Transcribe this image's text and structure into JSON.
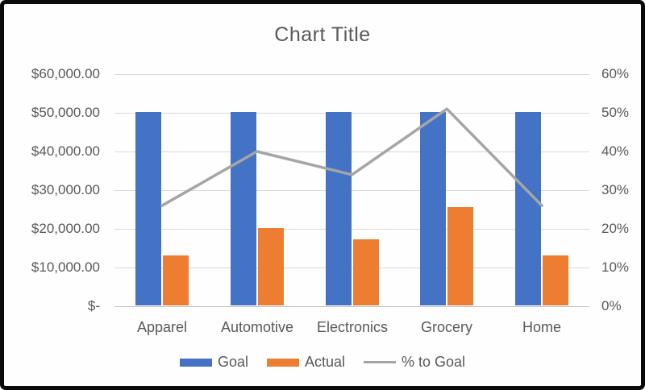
{
  "chart_data": {
    "type": "combo",
    "title": "Chart Title",
    "categories": [
      "Apparel",
      "Automotive",
      "Electronics",
      "Grocery",
      "Home"
    ],
    "series": [
      {
        "name": "Goal",
        "type": "bar",
        "axis": "left",
        "color": "#4472c4",
        "values": [
          50000,
          50000,
          50000,
          50000,
          50000
        ]
      },
      {
        "name": "Actual",
        "type": "bar",
        "axis": "left",
        "color": "#ed7d31",
        "values": [
          13000,
          20000,
          17000,
          25500,
          13000
        ]
      },
      {
        "name": "% to Goal",
        "type": "line",
        "axis": "right",
        "color": "#a5a5a5",
        "values": [
          26,
          40,
          34,
          51,
          26
        ]
      }
    ],
    "left_axis": {
      "min": 0,
      "max": 60000,
      "tick_labels": [
        "$60,000.00",
        "$50,000.00",
        "$40,000.00",
        "$30,000.00",
        "$20,000.00",
        "$10,000.00",
        "$-"
      ]
    },
    "right_axis": {
      "min": 0,
      "max": 60,
      "tick_labels": [
        "60%",
        "50%",
        "40%",
        "30%",
        "20%",
        "10%",
        "0%"
      ]
    },
    "legend": {
      "position": "bottom",
      "items": [
        {
          "label": "Goal",
          "color": "#4472c4",
          "type": "bar"
        },
        {
          "label": "Actual",
          "color": "#ed7d31",
          "type": "bar"
        },
        {
          "label": "% to Goal",
          "color": "#a5a5a5",
          "type": "line"
        }
      ]
    },
    "grid": {
      "on": true,
      "color": "#d9d9d9"
    },
    "frame_color": "#0a0a0a",
    "text_color": "#595959"
  }
}
